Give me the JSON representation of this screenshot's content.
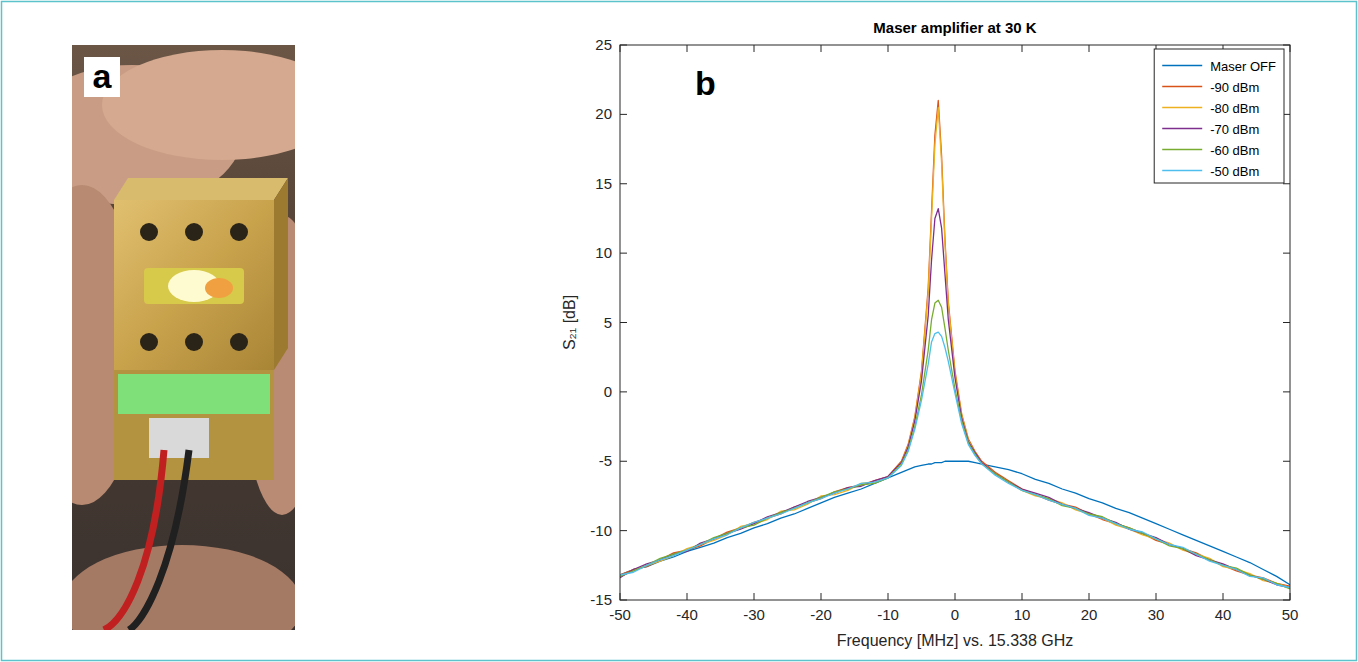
{
  "panel_labels": [
    "a",
    "b"
  ],
  "chart_data": {
    "type": "line",
    "title": "Maser amplifier at 30 K",
    "x_label": "Frequency [MHz] vs. 15.338 GHz",
    "y_label": "S₂₁  [dB]",
    "xlim": [
      -50,
      50
    ],
    "xticks": [
      -50,
      -40,
      -30,
      -20,
      -10,
      0,
      10,
      20,
      30,
      40,
      50
    ],
    "ylim": [
      -15,
      25
    ],
    "yticks": [
      -15,
      -10,
      -5,
      0,
      5,
      10,
      15,
      20,
      25
    ],
    "grid": false,
    "legend": "upper right",
    "x": [
      -50,
      -48,
      -46,
      -44,
      -42,
      -40,
      -38,
      -36,
      -34,
      -32,
      -30,
      -28,
      -26,
      -24,
      -22,
      -20,
      -18,
      -16,
      -14,
      -12,
      -10,
      -8,
      -7,
      -6,
      -5,
      -4,
      -3.5,
      -3,
      -2.5,
      -2,
      -1.5,
      -1,
      0,
      1,
      2,
      3,
      4,
      6,
      8,
      10,
      12,
      14,
      16,
      18,
      20,
      22,
      24,
      26,
      28,
      30,
      32,
      34,
      36,
      38,
      40,
      42,
      44,
      46,
      48,
      50
    ],
    "series": [
      {
        "name": "Maser OFF",
        "color": "#0072BD",
        "values": [
          -13.2,
          -12.8,
          -12.6,
          -12.2,
          -11.9,
          -11.5,
          -11.2,
          -10.9,
          -10.5,
          -10.2,
          -9.8,
          -9.5,
          -9.1,
          -8.8,
          -8.4,
          -8.0,
          -7.6,
          -7.3,
          -7.0,
          -6.6,
          -6.2,
          -5.8,
          -5.6,
          -5.4,
          -5.3,
          -5.2,
          -5.2,
          -5.1,
          -5.1,
          -5.1,
          -5.0,
          -5.0,
          -5.0,
          -5.0,
          -5.0,
          -5.1,
          -5.2,
          -5.4,
          -5.6,
          -5.9,
          -6.3,
          -6.6,
          -7.0,
          -7.3,
          -7.7,
          -8.0,
          -8.4,
          -8.7,
          -9.1,
          -9.5,
          -9.9,
          -10.3,
          -10.7,
          -11.1,
          -11.5,
          -11.9,
          -12.3,
          -12.8,
          -13.3,
          -13.9
        ]
      },
      {
        "name": "-90 dBm",
        "color": "#D95319",
        "values": [
          -13.2,
          -12.8,
          -12.6,
          -12.1,
          -11.6,
          -11.4,
          -11.1,
          -10.6,
          -10.1,
          -9.8,
          -9.4,
          -9.1,
          -8.8,
          -8.3,
          -8.0,
          -7.7,
          -7.2,
          -6.9,
          -6.7,
          -6.4,
          -6.1,
          -5.0,
          -3.8,
          -1.8,
          1.5,
          7.5,
          13.0,
          18.5,
          21.0,
          17.0,
          11.0,
          6.5,
          1.5,
          -1.6,
          -3.4,
          -4.3,
          -5.0,
          -5.8,
          -6.4,
          -7.0,
          -7.4,
          -7.8,
          -8.1,
          -8.3,
          -8.8,
          -9.2,
          -9.5,
          -9.8,
          -10.2,
          -10.7,
          -11.0,
          -11.3,
          -11.6,
          -12.1,
          -12.5,
          -12.9,
          -13.2,
          -13.4,
          -13.8,
          -14.0
        ]
      },
      {
        "name": "-80 dBm",
        "color": "#EDB120",
        "values": [
          -13.3,
          -12.9,
          -12.5,
          -12.2,
          -11.8,
          -11.3,
          -11.0,
          -10.7,
          -10.3,
          -9.7,
          -9.5,
          -9.2,
          -8.6,
          -8.5,
          -8.1,
          -7.5,
          -7.4,
          -7.1,
          -6.6,
          -6.5,
          -6.2,
          -5.1,
          -3.9,
          -1.9,
          1.3,
          7.2,
          12.5,
          17.8,
          20.5,
          16.5,
          10.7,
          6.3,
          1.3,
          -1.7,
          -3.5,
          -4.4,
          -5.1,
          -5.9,
          -6.5,
          -7.1,
          -7.5,
          -7.7,
          -8.0,
          -8.5,
          -8.8,
          -9.1,
          -9.6,
          -9.9,
          -10.3,
          -10.6,
          -10.9,
          -11.4,
          -11.7,
          -12.0,
          -12.6,
          -12.8,
          -13.1,
          -13.6,
          -13.8,
          -14.1
        ]
      },
      {
        "name": "-70 dBm",
        "color": "#7E2F8E",
        "values": [
          -13.4,
          -12.8,
          -12.4,
          -12.1,
          -11.7,
          -11.5,
          -10.9,
          -10.6,
          -10.2,
          -9.9,
          -9.5,
          -9.0,
          -8.7,
          -8.3,
          -7.9,
          -7.6,
          -7.3,
          -6.9,
          -6.8,
          -6.4,
          -6.1,
          -5.1,
          -4.0,
          -2.1,
          0.8,
          5.5,
          9.5,
          12.5,
          13.2,
          11.8,
          8.5,
          5.2,
          1.0,
          -1.9,
          -3.6,
          -4.4,
          -5.1,
          -5.9,
          -6.5,
          -7.0,
          -7.3,
          -7.6,
          -8.1,
          -8.4,
          -8.7,
          -9.1,
          -9.4,
          -9.9,
          -10.2,
          -10.5,
          -11.0,
          -11.3,
          -11.8,
          -12.1,
          -12.4,
          -12.8,
          -13.2,
          -13.5,
          -13.9,
          -14.1
        ]
      },
      {
        "name": "-60 dBm",
        "color": "#77AC30",
        "values": [
          -13.3,
          -12.9,
          -12.5,
          -12.0,
          -11.7,
          -11.4,
          -11.0,
          -10.5,
          -10.2,
          -9.8,
          -9.6,
          -9.1,
          -8.7,
          -8.4,
          -8.0,
          -7.6,
          -7.2,
          -7.0,
          -6.7,
          -6.6,
          -6.2,
          -5.2,
          -4.2,
          -2.5,
          -0.2,
          3.0,
          5.2,
          6.4,
          6.6,
          6.1,
          4.6,
          3.0,
          0.2,
          -2.1,
          -3.7,
          -4.5,
          -5.2,
          -5.9,
          -6.5,
          -7.1,
          -7.4,
          -7.7,
          -8.2,
          -8.4,
          -8.8,
          -9.0,
          -9.5,
          -9.8,
          -10.2,
          -10.6,
          -11.1,
          -11.3,
          -11.7,
          -12.1,
          -12.5,
          -12.7,
          -13.2,
          -13.5,
          -13.8,
          -14.2
        ]
      },
      {
        "name": "-50 dBm",
        "color": "#4DBEEE",
        "values": [
          -13.2,
          -13.0,
          -12.5,
          -12.1,
          -11.8,
          -11.4,
          -11.0,
          -10.6,
          -10.3,
          -9.8,
          -9.4,
          -9.1,
          -8.8,
          -8.4,
          -8.0,
          -7.7,
          -7.3,
          -7.0,
          -6.6,
          -6.5,
          -6.2,
          -5.3,
          -4.3,
          -2.7,
          -0.6,
          2.0,
          3.6,
          4.2,
          4.3,
          4.0,
          3.2,
          2.2,
          -0.1,
          -2.3,
          -3.8,
          -4.6,
          -5.2,
          -6.0,
          -6.6,
          -7.1,
          -7.4,
          -7.8,
          -8.1,
          -8.4,
          -8.9,
          -9.1,
          -9.5,
          -9.9,
          -10.1,
          -10.6,
          -11.0,
          -11.2,
          -11.7,
          -12.2,
          -12.5,
          -12.8,
          -13.3,
          -13.4,
          -13.9,
          -14.1
        ]
      }
    ]
  }
}
